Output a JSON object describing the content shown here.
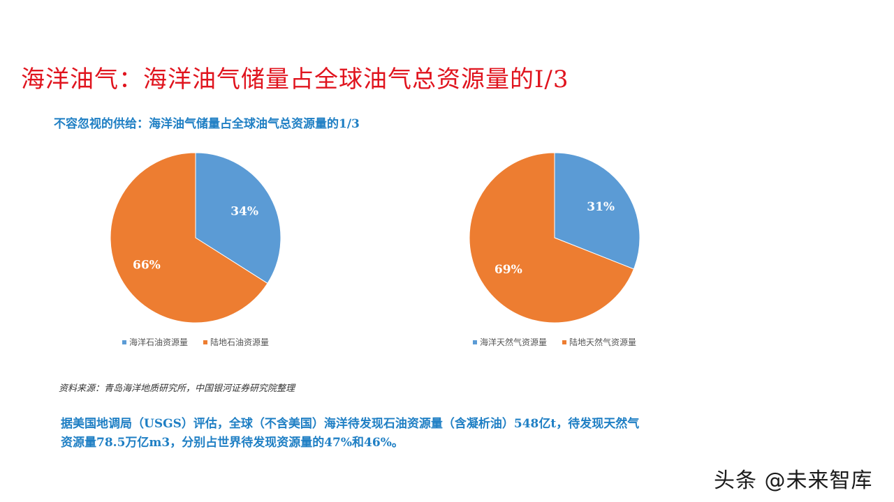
{
  "title": "海洋油气：海洋油气储量占全球油气总资源量的I/3",
  "subtitle": "不容忽视的供给：海洋油气储量占全球油气总资源量的1/3",
  "colors": {
    "offshore": "#5b9bd5",
    "onshore": "#ed7d31",
    "title": "#e0141e",
    "accent": "#1f7fc4"
  },
  "chart_data": [
    {
      "type": "pie",
      "labels": [
        "海洋石油资源量",
        "陆地石油资源量"
      ],
      "values": [
        34,
        66
      ],
      "data_labels": [
        "34%",
        "66%"
      ],
      "colors": [
        "#5b9bd5",
        "#ed7d31"
      ],
      "legend_position": "bottom"
    },
    {
      "type": "pie",
      "labels": [
        "海洋天然气资源量",
        "陆地天然气资源量"
      ],
      "values": [
        31,
        69
      ],
      "data_labels": [
        "31%",
        "69%"
      ],
      "colors": [
        "#5b9bd5",
        "#ed7d31"
      ],
      "legend_position": "bottom"
    }
  ],
  "source": "资料来源：青岛海洋地质研究所，中国银河证券研究院整理",
  "body_lines": [
    "据美国地调局（USGS）评估，全球（不含美国）海洋待发现石油资源量（含凝析油）548亿t，待发现天然气",
    "资源量78.5万亿m3，分别占世界待发现资源量的47%和46%。"
  ],
  "watermark": "头条 @未来智库"
}
